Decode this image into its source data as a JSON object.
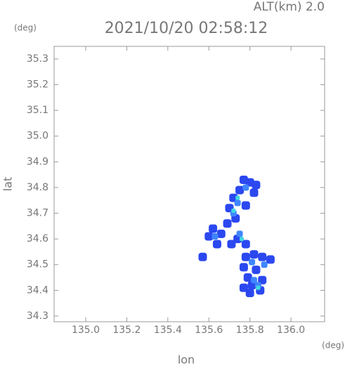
{
  "chart_data": {
    "type": "scatter",
    "title": "2021/10/20 02:58:12",
    "subtitle": "ALT(km) 2.0",
    "y_unit": "(deg)",
    "x_unit": "(deg)",
    "x_label": "lon",
    "y_label": "lat",
    "xlim": [
      134.846,
      136.164
    ],
    "ylim": [
      34.278,
      35.349
    ],
    "xticks": [
      {
        "value": 135.0,
        "label": "135.0"
      },
      135.2,
      135.4,
      135.6,
      135.8,
      {
        "value": 136.0,
        "label": "136.0"
      }
    ],
    "yticks": [
      34.3,
      34.4,
      34.5,
      34.6,
      34.7,
      34.8,
      34.9,
      {
        "value": 35.0,
        "label": "35.0"
      },
      35.1,
      35.2,
      35.3
    ],
    "series": [
      {
        "color": "#2b48f0",
        "x": [
          135.77,
          135.8,
          135.83,
          135.75,
          135.82,
          135.72,
          135.7,
          135.78,
          135.73,
          135.69,
          135.62,
          135.6,
          135.64,
          135.57,
          135.66,
          135.74,
          135.78,
          135.71,
          135.78,
          135.82,
          135.86,
          135.9,
          135.77,
          135.83,
          135.79,
          135.81,
          135.85,
          135.8,
          135.77,
          135.86
        ],
        "values": [
          34.83,
          34.82,
          34.81,
          34.79,
          34.78,
          34.76,
          34.72,
          34.73,
          34.68,
          34.66,
          34.64,
          34.61,
          34.58,
          34.53,
          34.62,
          34.6,
          34.58,
          34.58,
          34.53,
          34.54,
          34.53,
          34.52,
          34.49,
          34.48,
          34.45,
          34.42,
          34.4,
          34.39,
          34.41,
          34.44
        ]
      },
      {
        "color": "#3f86ff",
        "x": [
          135.78,
          135.74,
          135.72,
          135.63,
          135.75,
          135.81,
          135.87,
          135.82,
          135.84
        ],
        "values": [
          34.8,
          34.74,
          34.7,
          34.61,
          34.62,
          34.51,
          34.5,
          34.44,
          34.42
        ]
      },
      {
        "color": "#40d8e0",
        "x": [
          135.74,
          135.76,
          135.84,
          135.72
        ],
        "values": [
          34.76,
          34.6,
          34.41,
          34.71
        ]
      }
    ]
  }
}
